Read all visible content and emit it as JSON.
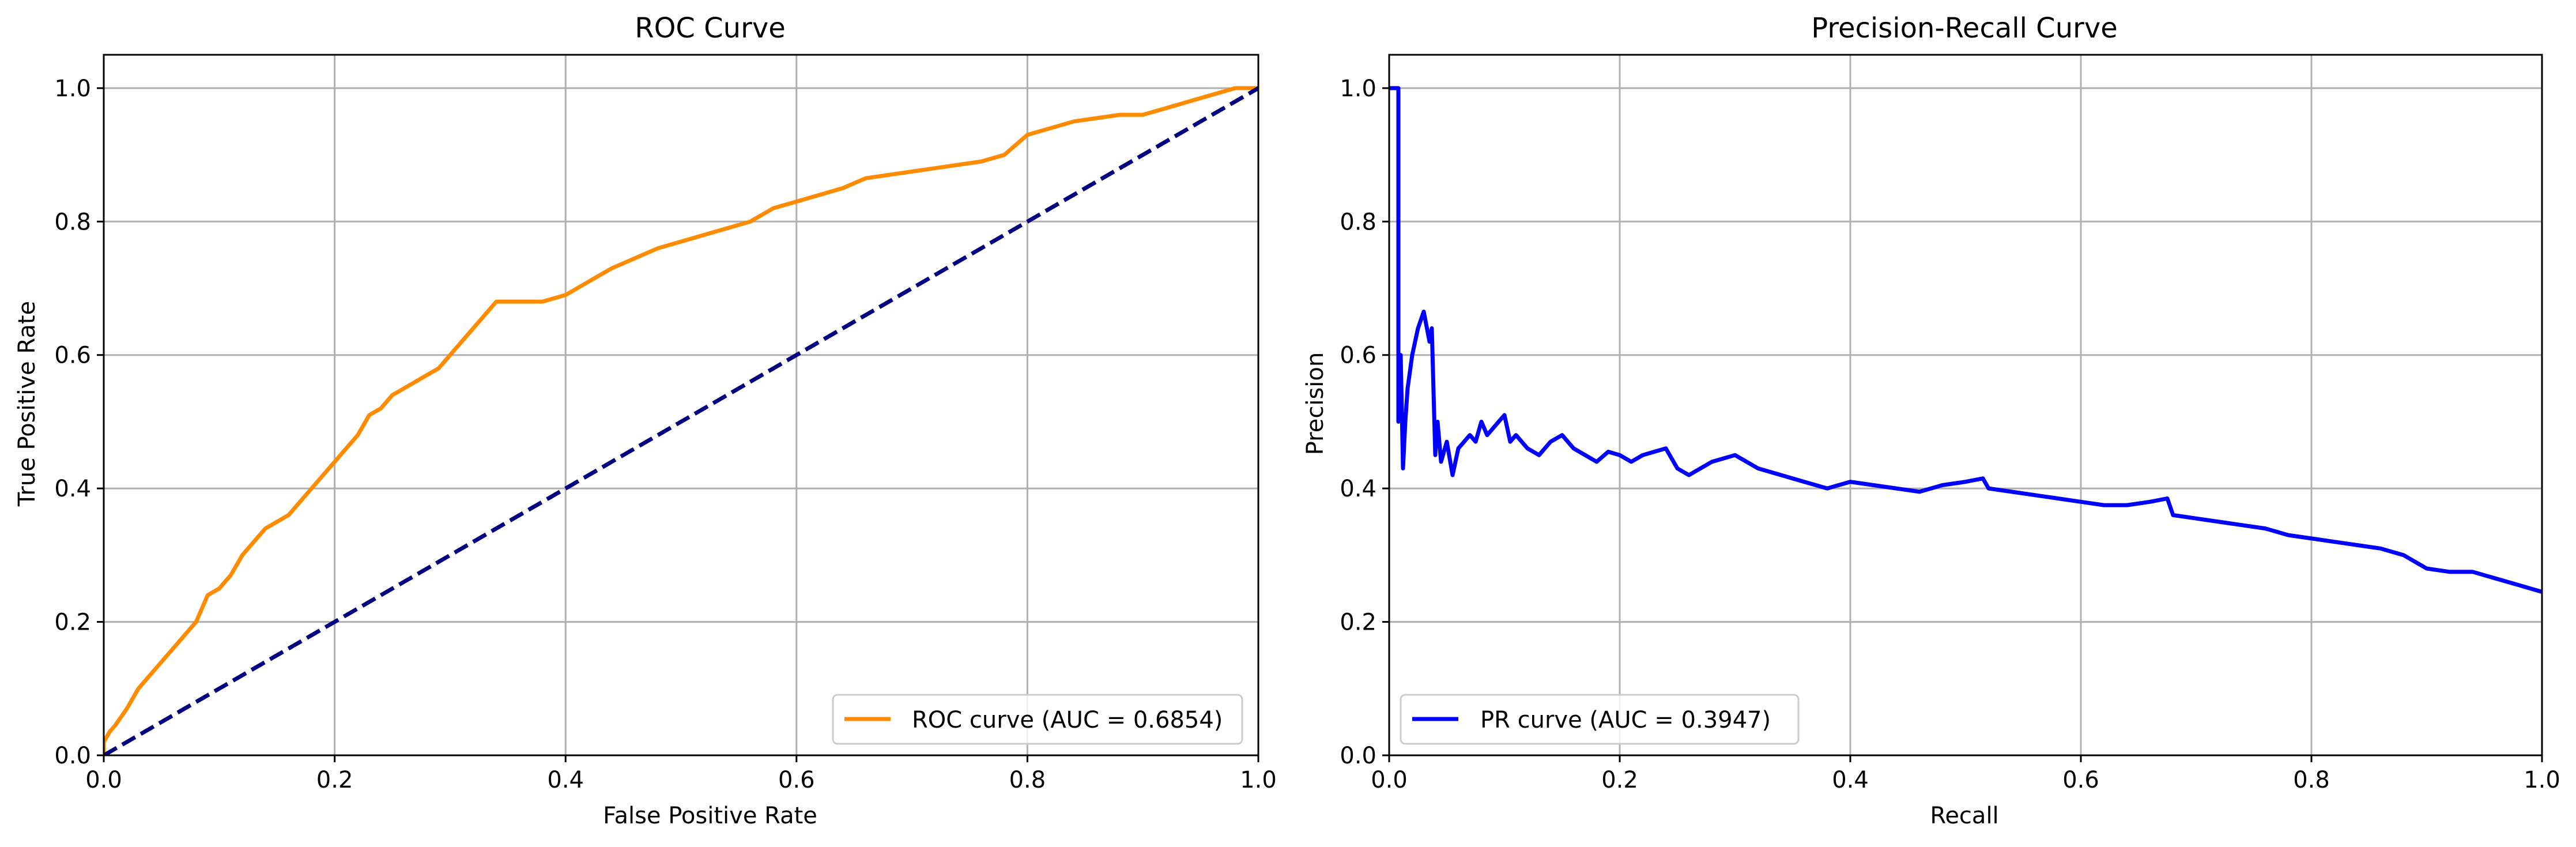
{
  "chart_data": [
    {
      "type": "line",
      "title": "ROC Curve",
      "xlabel": "False Positive Rate",
      "ylabel": "True Positive Rate",
      "xlim": [
        0.0,
        1.0
      ],
      "ylim": [
        0.0,
        1.05
      ],
      "xticks": [
        "0.0",
        "0.2",
        "0.4",
        "0.6",
        "0.8",
        "1.0"
      ],
      "yticks": [
        "0.0",
        "0.2",
        "0.4",
        "0.6",
        "0.8",
        "1.0"
      ],
      "grid": true,
      "legend_position": "lower-right",
      "series": [
        {
          "name": "ROC curve (AUC = 0.6854)",
          "color": "#ff8c00",
          "style": "solid",
          "x": [
            0.0,
            0.0,
            0.005,
            0.01,
            0.02,
            0.03,
            0.04,
            0.05,
            0.06,
            0.07,
            0.08,
            0.09,
            0.1,
            0.11,
            0.12,
            0.13,
            0.14,
            0.15,
            0.16,
            0.17,
            0.18,
            0.19,
            0.2,
            0.21,
            0.22,
            0.23,
            0.24,
            0.25,
            0.26,
            0.27,
            0.28,
            0.29,
            0.3,
            0.31,
            0.32,
            0.33,
            0.34,
            0.35,
            0.36,
            0.38,
            0.4,
            0.42,
            0.44,
            0.46,
            0.48,
            0.5,
            0.52,
            0.54,
            0.56,
            0.58,
            0.6,
            0.62,
            0.64,
            0.66,
            0.68,
            0.7,
            0.72,
            0.74,
            0.76,
            0.78,
            0.8,
            0.82,
            0.84,
            0.86,
            0.88,
            0.9,
            0.92,
            0.94,
            0.96,
            0.98,
            1.0
          ],
          "y": [
            0.0,
            0.02,
            0.035,
            0.045,
            0.07,
            0.1,
            0.12,
            0.14,
            0.16,
            0.18,
            0.2,
            0.24,
            0.25,
            0.27,
            0.3,
            0.32,
            0.34,
            0.35,
            0.36,
            0.38,
            0.4,
            0.42,
            0.44,
            0.46,
            0.48,
            0.51,
            0.52,
            0.54,
            0.55,
            0.56,
            0.57,
            0.58,
            0.6,
            0.62,
            0.64,
            0.66,
            0.68,
            0.68,
            0.68,
            0.68,
            0.69,
            0.71,
            0.73,
            0.745,
            0.76,
            0.77,
            0.78,
            0.79,
            0.8,
            0.82,
            0.83,
            0.84,
            0.85,
            0.865,
            0.87,
            0.875,
            0.88,
            0.885,
            0.89,
            0.9,
            0.93,
            0.94,
            0.95,
            0.955,
            0.96,
            0.96,
            0.97,
            0.98,
            0.99,
            1.0,
            1.0
          ]
        },
        {
          "name": "",
          "color": "#000080",
          "style": "dashed",
          "x": [
            0.0,
            1.0
          ],
          "y": [
            0.0,
            1.0
          ]
        }
      ]
    },
    {
      "type": "line",
      "title": "Precision-Recall Curve",
      "xlabel": "Recall",
      "ylabel": "Precision",
      "xlim": [
        0.0,
        1.0
      ],
      "ylim": [
        0.0,
        1.05
      ],
      "xticks": [
        "0.0",
        "0.2",
        "0.4",
        "0.6",
        "0.8",
        "1.0"
      ],
      "yticks": [
        "0.0",
        "0.2",
        "0.4",
        "0.6",
        "0.8",
        "1.0"
      ],
      "grid": true,
      "legend_position": "lower-left",
      "series": [
        {
          "name": "PR curve (AUC = 0.3947)",
          "color": "#0000ff",
          "style": "solid",
          "x": [
            0.0,
            0.008,
            0.008,
            0.01,
            0.012,
            0.014,
            0.016,
            0.02,
            0.025,
            0.03,
            0.035,
            0.037,
            0.04,
            0.042,
            0.045,
            0.05,
            0.055,
            0.06,
            0.065,
            0.07,
            0.075,
            0.08,
            0.085,
            0.09,
            0.095,
            0.1,
            0.105,
            0.11,
            0.12,
            0.13,
            0.14,
            0.15,
            0.16,
            0.17,
            0.18,
            0.19,
            0.2,
            0.21,
            0.22,
            0.23,
            0.24,
            0.25,
            0.26,
            0.28,
            0.3,
            0.32,
            0.34,
            0.36,
            0.38,
            0.4,
            0.42,
            0.44,
            0.46,
            0.48,
            0.5,
            0.515,
            0.52,
            0.54,
            0.56,
            0.58,
            0.6,
            0.62,
            0.64,
            0.66,
            0.675,
            0.68,
            0.7,
            0.72,
            0.74,
            0.76,
            0.78,
            0.8,
            0.82,
            0.84,
            0.86,
            0.88,
            0.9,
            0.92,
            0.94,
            0.96,
            0.98,
            1.0
          ],
          "y": [
            1.0,
            1.0,
            0.5,
            0.6,
            0.43,
            0.5,
            0.55,
            0.6,
            0.64,
            0.665,
            0.62,
            0.64,
            0.45,
            0.5,
            0.44,
            0.47,
            0.42,
            0.46,
            0.47,
            0.48,
            0.47,
            0.5,
            0.48,
            0.49,
            0.5,
            0.51,
            0.47,
            0.48,
            0.46,
            0.45,
            0.47,
            0.48,
            0.46,
            0.45,
            0.44,
            0.455,
            0.45,
            0.44,
            0.45,
            0.455,
            0.46,
            0.43,
            0.42,
            0.44,
            0.45,
            0.43,
            0.42,
            0.41,
            0.4,
            0.41,
            0.405,
            0.4,
            0.395,
            0.405,
            0.41,
            0.415,
            0.4,
            0.395,
            0.39,
            0.385,
            0.38,
            0.375,
            0.375,
            0.38,
            0.385,
            0.36,
            0.355,
            0.35,
            0.345,
            0.34,
            0.33,
            0.325,
            0.32,
            0.315,
            0.31,
            0.3,
            0.28,
            0.275,
            0.275,
            0.265,
            0.255,
            0.245
          ]
        }
      ]
    }
  ]
}
